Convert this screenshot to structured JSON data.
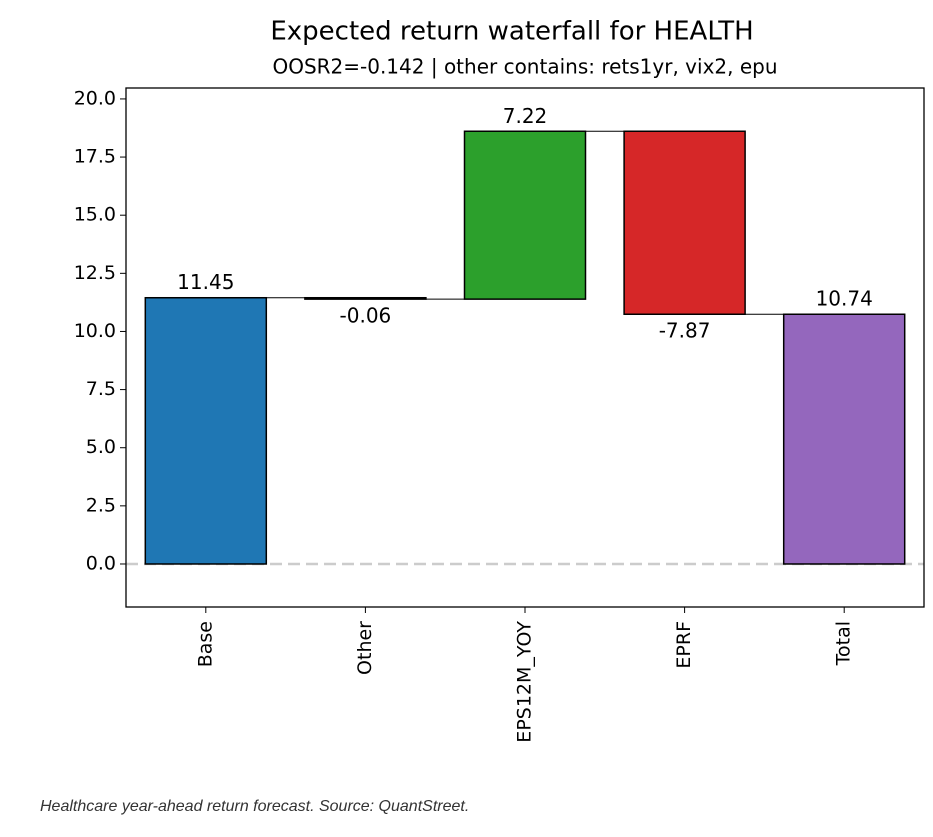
{
  "chart_data": {
    "type": "waterfall",
    "title": "Expected return waterfall for HEALTH",
    "subtitle": "OOSR2=-0.142 | other contains: rets1yr, vix2, epu",
    "categories": [
      "Base",
      "Other",
      "EPS12M_YOY",
      "EPRF",
      "Total"
    ],
    "values": [
      11.45,
      -0.06,
      7.22,
      -7.87,
      10.74
    ],
    "colors": [
      "#1f77b4",
      "#7f7f7f",
      "#2ca02c",
      "#d62728",
      "#9467bd"
    ],
    "ylim": [
      -1.85,
      20.47
    ],
    "yticks": [
      {
        "value": 0,
        "label": "0.0"
      },
      2.5,
      {
        "value": 5,
        "label": "5.0"
      },
      7.5,
      {
        "value": 10,
        "label": "10.0"
      },
      12.5,
      {
        "value": 15,
        "label": "15.0"
      },
      17.5,
      {
        "value": 20,
        "label": "20.0"
      }
    ],
    "zero_line": true,
    "caption": "Healthcare year-ahead return forecast. Source: QuantStreet."
  }
}
